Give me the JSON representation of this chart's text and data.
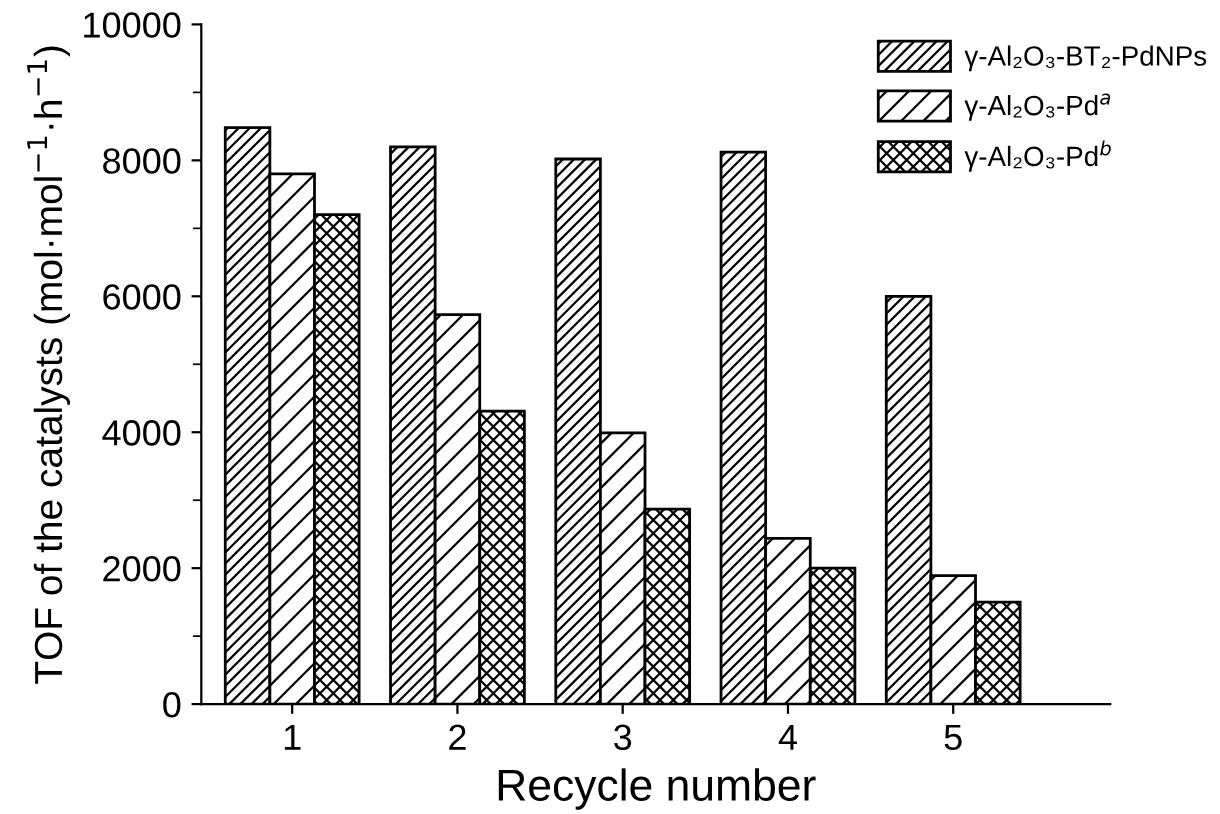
{
  "chart_data": {
    "type": "bar",
    "xlabel": "Recycle number",
    "ylabel": "TOF of the catalysts (mol·mol$^{−1}$·h$^{−1}$)",
    "categories": [
      "1",
      "2",
      "3",
      "4",
      "5"
    ],
    "series": [
      {
        "name": "γ-Al₂O₃-BT₂-PdNPs",
        "color": "#000000",
        "values": [
          8480,
          8200,
          8020,
          8120,
          6000
        ]
      },
      {
        "name": "γ-Al₂O₃-Pd$^{a}$",
        "color": "#000000",
        "values": [
          7800,
          5730,
          3990,
          2440,
          1890
        ]
      },
      {
        "name": "γ-Al₂O₃-Pd$^{b}$",
        "color": "#000000",
        "values": [
          7200,
          4310,
          2870,
          2000,
          1500
        ]
      }
    ],
    "ylim": [
      0,
      10000
    ],
    "yticks": [
      0,
      2000,
      4000,
      6000,
      8000,
      10000
    ],
    "grid": false,
    "legend": "top right"
  }
}
